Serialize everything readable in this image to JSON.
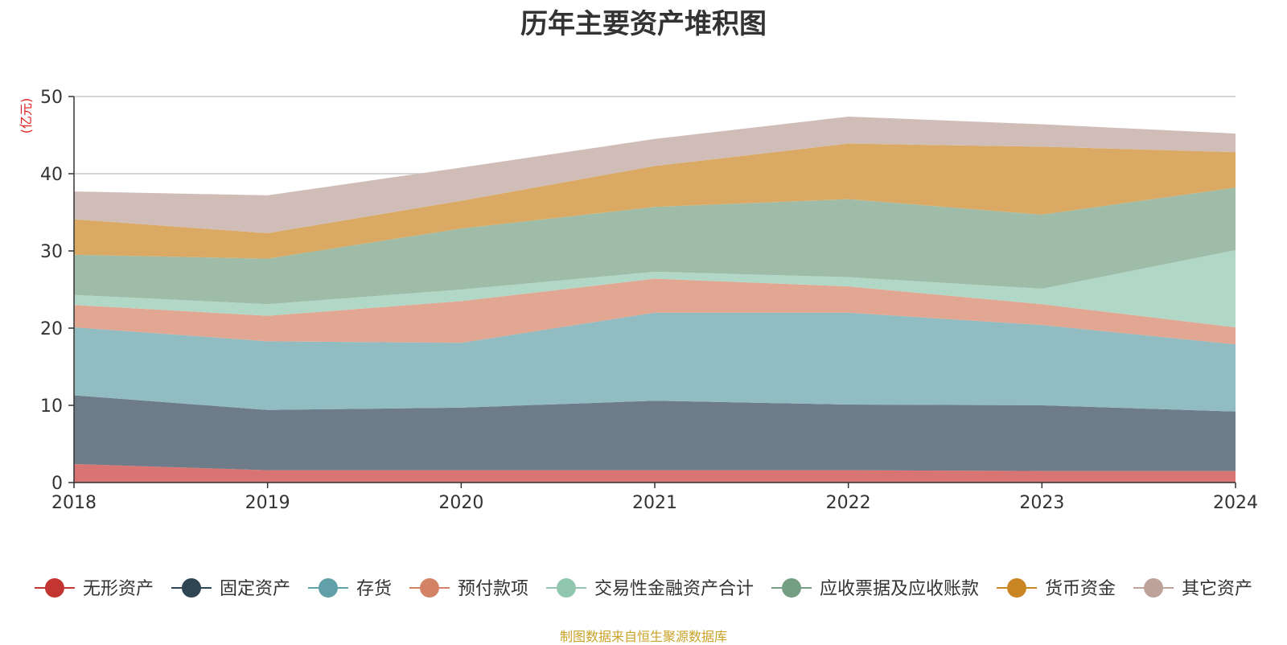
{
  "chart_data": {
    "type": "area",
    "stacked": true,
    "title": "历年主要资产堆积图",
    "ylabel": "(亿元)",
    "xlabel": "",
    "categories": [
      "2018",
      "2019",
      "2020",
      "2021",
      "2022",
      "2023",
      "2024"
    ],
    "ylim": [
      0,
      50
    ],
    "yticks": [
      0,
      10,
      20,
      30,
      40,
      50
    ],
    "grid": true,
    "legend_position": "bottom",
    "series": [
      {
        "name": "无形资产",
        "color": "#c23531",
        "area_color": "#d87472",
        "values": [
          2.4,
          1.6,
          1.6,
          1.6,
          1.6,
          1.5,
          1.5
        ]
      },
      {
        "name": "固定资产",
        "color": "#2f4554",
        "area_color": "#6e7c89",
        "values": [
          8.9,
          7.8,
          8.1,
          9.0,
          8.5,
          8.5,
          7.7
        ]
      },
      {
        "name": "存货",
        "color": "#61a0a8",
        "area_color": "#90bcc2",
        "values": [
          8.8,
          8.9,
          8.4,
          11.4,
          11.9,
          10.4,
          8.7
        ]
      },
      {
        "name": "预付款项",
        "color": "#d48265",
        "area_color": "#e2a792",
        "values": [
          2.9,
          3.3,
          5.4,
          4.4,
          3.4,
          2.7,
          2.2
        ]
      },
      {
        "name": "交易性金融资产合计",
        "color": "#91c7ae",
        "area_color": "#b1d8c6",
        "values": [
          1.3,
          1.5,
          1.5,
          0.9,
          1.2,
          2.0,
          10.0
        ]
      },
      {
        "name": "应收票据及应收账款",
        "color": "#749f83",
        "area_color": "#9ebca8",
        "values": [
          5.2,
          5.9,
          7.9,
          8.4,
          10.1,
          9.6,
          8.1
        ]
      },
      {
        "name": "货币资金",
        "color": "#ca8622",
        "area_color": "#daaa64",
        "values": [
          4.6,
          3.3,
          3.6,
          5.3,
          7.2,
          8.8,
          4.6
        ]
      },
      {
        "name": "其它资产",
        "color": "#bda29a",
        "area_color": "#d0bdb8",
        "values": [
          3.6,
          4.9,
          4.3,
          3.5,
          3.5,
          2.9,
          2.4
        ]
      }
    ],
    "source_note": "制图数据来自恒生聚源数据库"
  }
}
